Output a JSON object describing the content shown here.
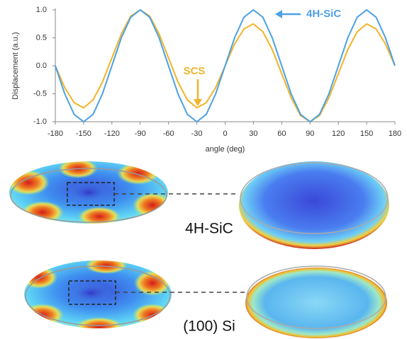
{
  "chart_data": {
    "type": "line",
    "y_label": "Displacement (a.u.)",
    "x_label": "angle (deg)",
    "x": [
      -180,
      -170,
      -160,
      -150,
      -140,
      -130,
      -120,
      -110,
      -100,
      -90,
      -80,
      -70,
      -60,
      -50,
      -40,
      -30,
      -20,
      -10,
      0,
      10,
      20,
      30,
      40,
      50,
      60,
      70,
      80,
      90,
      100,
      110,
      120,
      130,
      140,
      150,
      160,
      170,
      180
    ],
    "series": [
      {
        "name": "4H-SiC",
        "color": "#4ea1e4",
        "values": [
          0,
          -0.5,
          -0.87,
          -1,
          -0.87,
          -0.5,
          0,
          0.5,
          0.87,
          1,
          0.87,
          0.5,
          0,
          -0.5,
          -0.87,
          -1,
          -0.87,
          -0.5,
          0,
          0.5,
          0.87,
          1,
          0.87,
          0.5,
          0,
          -0.5,
          -0.87,
          -1,
          -0.87,
          -0.5,
          0,
          0.5,
          0.87,
          1,
          0.87,
          0.5,
          0
        ]
      },
      {
        "name": "SCS",
        "color": "#f0b429",
        "values": [
          0,
          -0.39,
          -0.66,
          -0.75,
          -0.61,
          -0.29,
          0.14,
          0.57,
          0.89,
          1,
          0.89,
          0.57,
          0.14,
          -0.29,
          -0.61,
          -0.75,
          -0.66,
          -0.39,
          0,
          0.39,
          0.66,
          0.75,
          0.61,
          0.29,
          -0.14,
          -0.57,
          -0.89,
          -1,
          -0.89,
          -0.57,
          -0.14,
          0.29,
          0.61,
          0.75,
          0.66,
          0.39,
          0
        ]
      }
    ],
    "xlim": [
      -180,
      180
    ],
    "xticks": [
      -180,
      -150,
      -120,
      -90,
      -60,
      -30,
      0,
      30,
      60,
      90,
      120,
      150,
      180
    ],
    "ylim": [
      -1,
      1
    ],
    "yticks": [
      {
        "value": -1,
        "label": "-1.0"
      },
      -0.5,
      {
        "value": 0,
        "label": "0.0"
      },
      0.5,
      {
        "value": 1,
        "label": "1.0"
      }
    ],
    "grid": false
  },
  "images": {
    "top_label": "4H-SiC",
    "bottom_label": "(100) Si"
  }
}
